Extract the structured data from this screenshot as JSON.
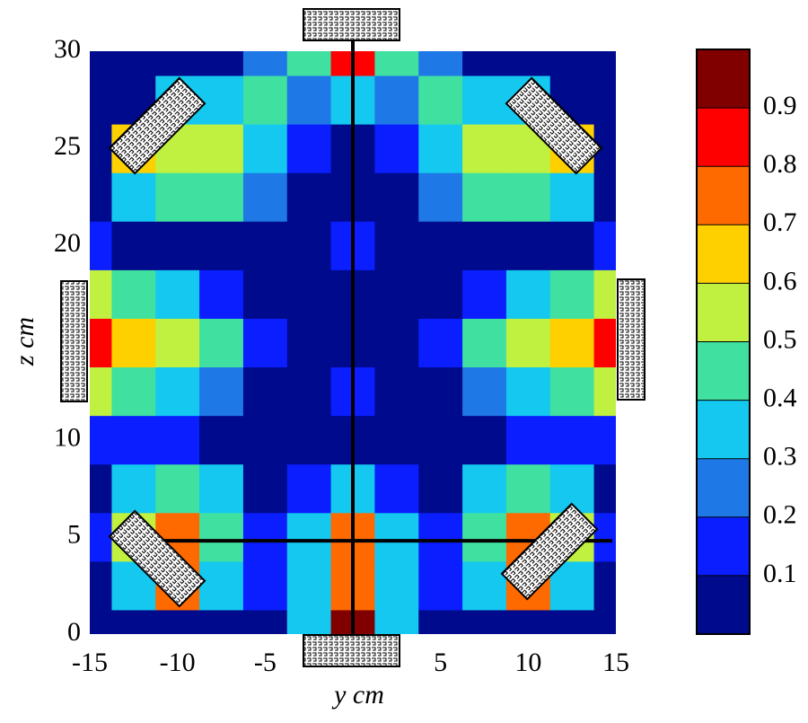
{
  "chart_data": {
    "type": "contour",
    "xlabel": "y cm",
    "ylabel": "z cm",
    "xlim": [
      -15,
      15
    ],
    "ylim": [
      0,
      30
    ],
    "xticks": [
      -15,
      -10,
      -5,
      5,
      10,
      15
    ],
    "yticks": [
      0,
      5,
      10,
      20,
      25,
      30
    ],
    "x": [
      -15,
      -12.5,
      -10,
      -7.5,
      -5,
      -2.5,
      0,
      2.5,
      5,
      7.5,
      10,
      12.5,
      15
    ],
    "y": [
      0,
      2.5,
      5,
      7.5,
      10,
      12.5,
      15,
      17.5,
      20,
      22.5,
      25,
      27.5,
      30
    ],
    "z": [
      [
        0.02,
        0.02,
        0.05,
        0.05,
        0.05,
        0.3,
        0.9,
        0.3,
        0.05,
        0.05,
        0.05,
        0.02,
        0.02
      ],
      [
        0.05,
        0.3,
        0.7,
        0.35,
        0.1,
        0.35,
        0.75,
        0.35,
        0.1,
        0.35,
        0.7,
        0.3,
        0.05
      ],
      [
        0.1,
        0.55,
        0.75,
        0.45,
        0.1,
        0.3,
        0.7,
        0.3,
        0.1,
        0.45,
        0.75,
        0.55,
        0.1
      ],
      [
        0.05,
        0.3,
        0.45,
        0.3,
        0.05,
        0.15,
        0.35,
        0.15,
        0.05,
        0.3,
        0.45,
        0.3,
        0.05
      ],
      [
        0.1,
        0.1,
        0.1,
        0.05,
        0.02,
        0.02,
        0.05,
        0.02,
        0.02,
        0.05,
        0.1,
        0.1,
        0.1
      ],
      [
        0.55,
        0.45,
        0.35,
        0.2,
        0.05,
        0.02,
        0.15,
        0.02,
        0.05,
        0.2,
        0.35,
        0.45,
        0.55
      ],
      [
        0.8,
        0.6,
        0.55,
        0.45,
        0.1,
        0.02,
        0.05,
        0.02,
        0.1,
        0.45,
        0.55,
        0.6,
        0.8
      ],
      [
        0.5,
        0.4,
        0.3,
        0.15,
        0.02,
        0.02,
        0.05,
        0.02,
        0.02,
        0.15,
        0.3,
        0.4,
        0.5
      ],
      [
        0.1,
        0.05,
        0.05,
        0.05,
        0.05,
        0.05,
        0.15,
        0.05,
        0.05,
        0.05,
        0.05,
        0.05,
        0.1
      ],
      [
        0.02,
        0.3,
        0.4,
        0.4,
        0.2,
        0.05,
        0.05,
        0.05,
        0.2,
        0.4,
        0.4,
        0.3,
        0.02
      ],
      [
        0.02,
        0.65,
        0.55,
        0.5,
        0.3,
        0.1,
        0.02,
        0.1,
        0.3,
        0.5,
        0.55,
        0.65,
        0.02
      ],
      [
        0.02,
        0.02,
        0.3,
        0.3,
        0.4,
        0.2,
        0.3,
        0.2,
        0.4,
        0.3,
        0.3,
        0.02,
        0.02
      ],
      [
        0.02,
        0.02,
        0.02,
        0.05,
        0.2,
        0.4,
        0.8,
        0.4,
        0.2,
        0.05,
        0.02,
        0.02,
        0.02
      ]
    ],
    "levels": [
      0.1,
      0.2,
      0.3,
      0.4,
      0.5,
      0.6,
      0.7,
      0.8,
      0.9
    ],
    "clim": [
      0,
      1
    ],
    "colors": [
      "#000a8c",
      "#0a1eff",
      "#1e78e6",
      "#14c8f0",
      "#40e0a0",
      "#c0f040",
      "#ffd000",
      "#ff6a00",
      "#ff0000",
      "#800000"
    ],
    "cross_lines": {
      "x": 0,
      "y": 4.8
    }
  }
}
